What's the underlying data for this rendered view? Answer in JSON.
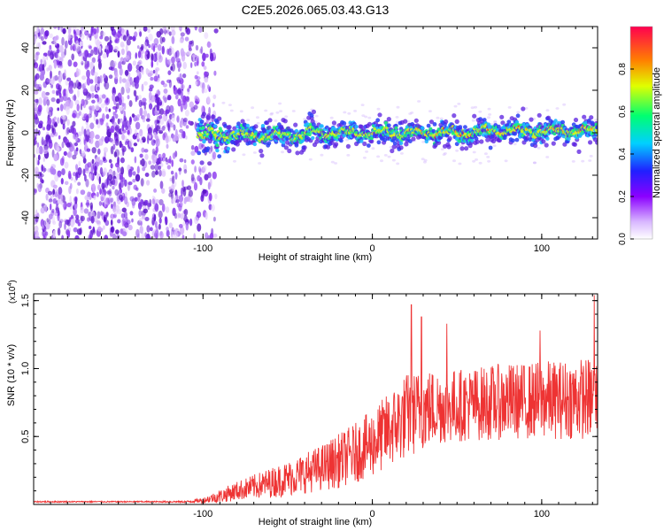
{
  "title": "C2E5.2026.065.03.43.G13",
  "colors": {
    "snr_line": "#ee3333",
    "dot_purple": "#7a2ee6",
    "background": "#ffffff"
  },
  "chart_data": [
    {
      "type": "heatmap",
      "title": "C2E5.2026.065.03.43.G13",
      "xlabel": "Height of straight line (km)",
      "ylabel": "Frequency (Hz)",
      "xlim": [
        -200,
        133
      ],
      "ylim": [
        -50,
        50
      ],
      "xticks": [
        -100,
        0,
        100
      ],
      "yticks": [
        -40,
        -20,
        0,
        20,
        40
      ],
      "xtick_labels": [
        "-100",
        "0",
        "100"
      ],
      "ytick_labels": [
        "-40",
        "-20",
        "0",
        "20",
        "40"
      ],
      "noise_region_x": [
        -200,
        -92
      ],
      "signal_band_center_hz": 0,
      "signal_band_halfwidth_hz": 5,
      "colorbar": {
        "label": "Normalized spectral amplitude",
        "range": [
          0,
          1
        ],
        "ticks": [
          0,
          0.2,
          0.4,
          0.6,
          0.8
        ],
        "tick_labels": [
          "0.0",
          "0.2",
          "0.4",
          "0.6",
          "0.8"
        ],
        "colormap": [
          "#ffffff",
          "#8b00ff",
          "#2020ff",
          "#00d0ff",
          "#00ff70",
          "#ffff00",
          "#ff8000",
          "#ff0050"
        ]
      }
    },
    {
      "type": "line",
      "xlabel": "Height of straight line (km)",
      "ylabel": "SNR (10 * v/v)",
      "yscale_label": "(x10",
      "yscale_exponent": "4",
      "xlim": [
        -200,
        133
      ],
      "ylim": [
        0,
        1.55
      ],
      "xticks": [
        -100,
        0,
        100
      ],
      "yticks": [
        0.5,
        1.0,
        1.5
      ],
      "xtick_labels": [
        "-100",
        "0",
        "100"
      ],
      "ytick_labels": [
        "0.5",
        "1.0",
        "1.5"
      ],
      "series": [
        {
          "name": "SNR",
          "color": "#ee3333",
          "x": [
            -200,
            -150,
            -110,
            -100,
            -90,
            -80,
            -70,
            -60,
            -50,
            -40,
            -30,
            -20,
            -10,
            0,
            10,
            20,
            30,
            40,
            50,
            60,
            70,
            80,
            90,
            100,
            110,
            120,
            133
          ],
          "mean": [
            0.02,
            0.02,
            0.02,
            0.03,
            0.06,
            0.1,
            0.13,
            0.16,
            0.19,
            0.23,
            0.27,
            0.32,
            0.38,
            0.45,
            0.55,
            0.65,
            0.7,
            0.72,
            0.73,
            0.74,
            0.75,
            0.76,
            0.76,
            0.77,
            0.77,
            0.78,
            0.78
          ],
          "spread": [
            0.005,
            0.005,
            0.006,
            0.02,
            0.05,
            0.07,
            0.09,
            0.11,
            0.13,
            0.15,
            0.17,
            0.2,
            0.22,
            0.25,
            0.28,
            0.32,
            0.3,
            0.28,
            0.27,
            0.27,
            0.28,
            0.28,
            0.28,
            0.29,
            0.29,
            0.3,
            0.3
          ],
          "peaks": [
            [
              23,
              1.47
            ],
            [
              29,
              1.38
            ],
            [
              44,
              1.33
            ],
            [
              99,
              1.28
            ],
            [
              131,
              1.54
            ]
          ]
        }
      ]
    }
  ]
}
